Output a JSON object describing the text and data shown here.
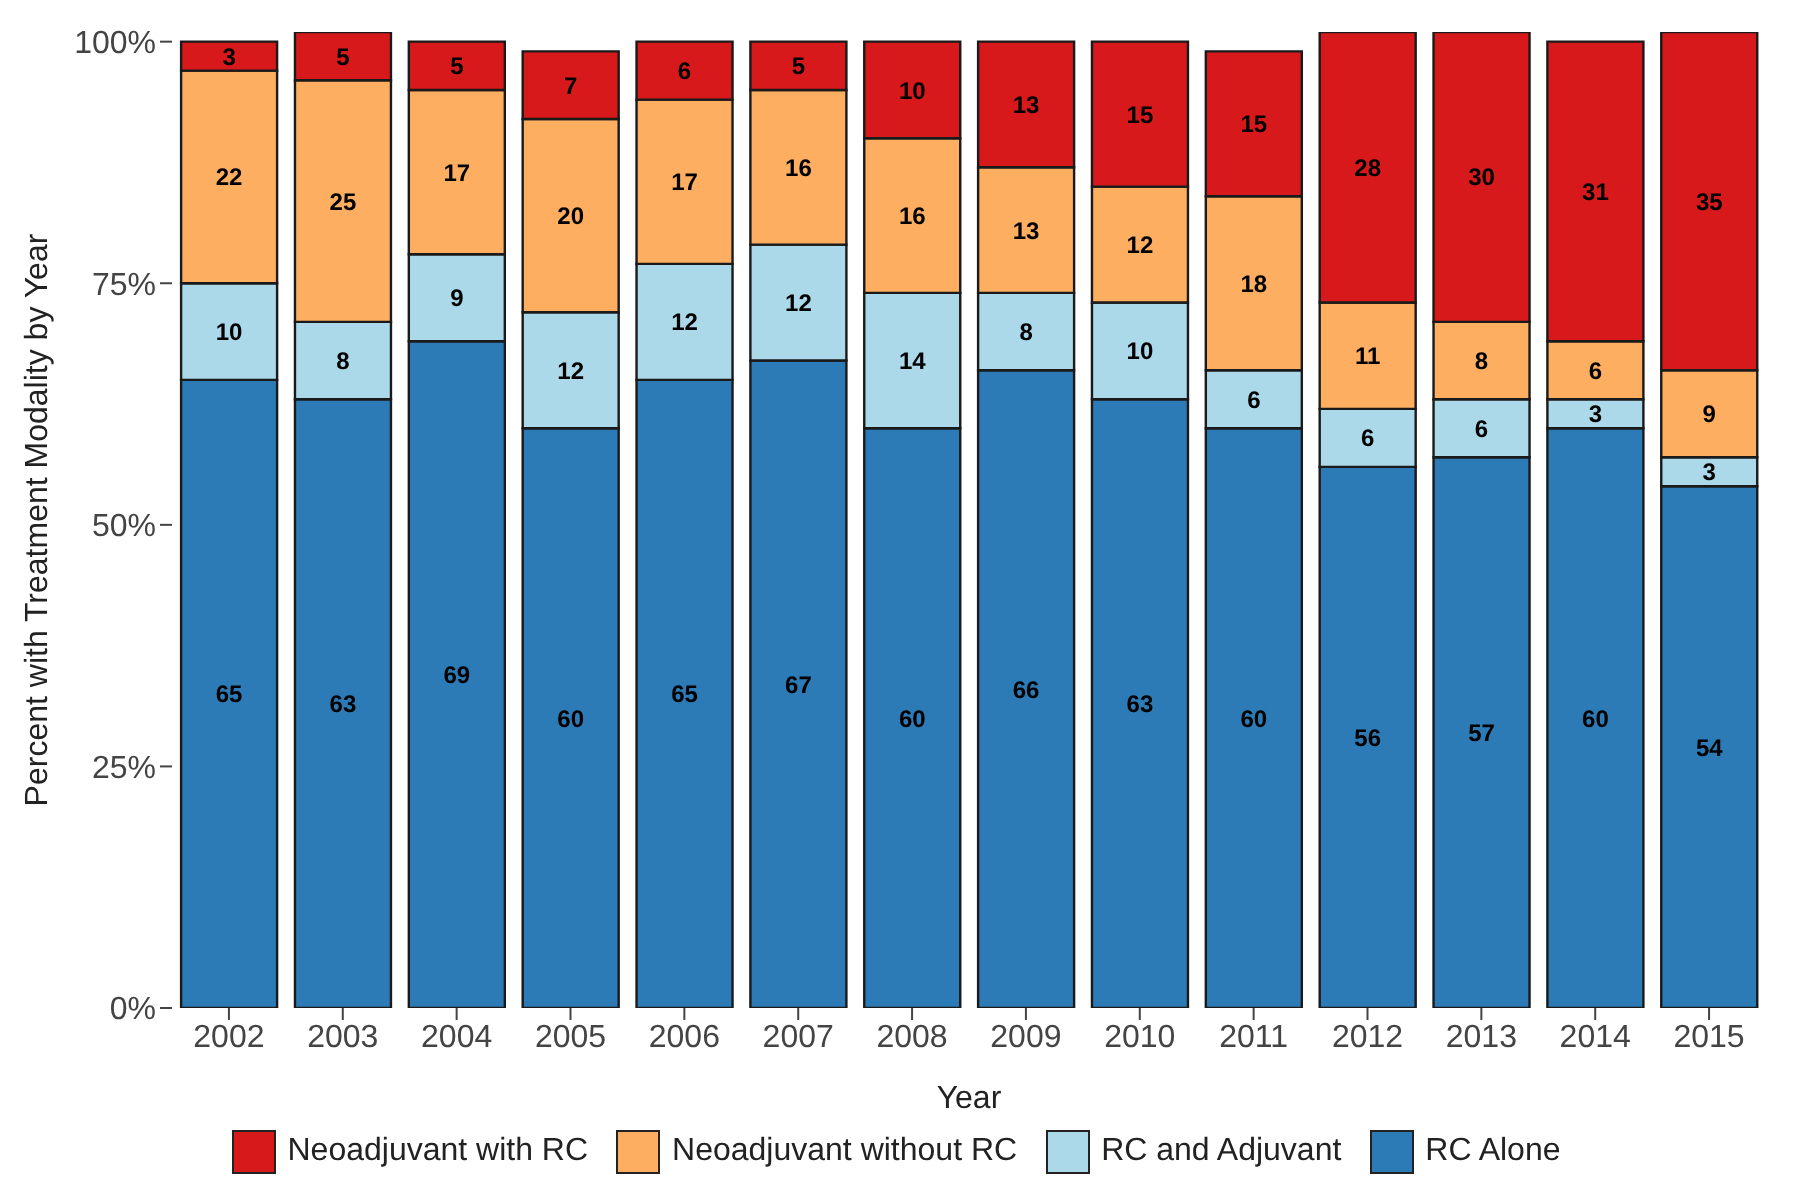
{
  "chart_data": {
    "type": "bar",
    "stacked": true,
    "data_labels": true,
    "xlabel": "Year",
    "ylabel": "Percent with Treatment Modality by Year",
    "categories": [
      "2002",
      "2003",
      "2004",
      "2005",
      "2006",
      "2007",
      "2008",
      "2009",
      "2010",
      "2011",
      "2012",
      "2013",
      "2014",
      "2015"
    ],
    "series": [
      {
        "name": "RC Alone",
        "color": "#2c7bb6",
        "values": [
          65,
          63,
          69,
          60,
          65,
          67,
          60,
          66,
          63,
          60,
          56,
          57,
          60,
          54
        ]
      },
      {
        "name": "RC and Adjuvant",
        "color": "#abd9e9",
        "values": [
          10,
          8,
          9,
          12,
          12,
          12,
          14,
          8,
          10,
          6,
          6,
          6,
          3,
          3
        ]
      },
      {
        "name": "Neoadjuvant without RC",
        "color": "#fdae61",
        "values": [
          22,
          25,
          17,
          20,
          17,
          16,
          16,
          13,
          12,
          18,
          11,
          8,
          6,
          9
        ]
      },
      {
        "name": "Neoadjuvant with RC",
        "color": "#d7191c",
        "values": [
          3,
          5,
          5,
          7,
          6,
          5,
          10,
          13,
          15,
          15,
          28,
          30,
          31,
          35
        ]
      }
    ],
    "ylim": [
      0,
      101
    ],
    "yticks": [
      {
        "value": 0,
        "label": "0%"
      },
      {
        "value": 25,
        "label": "25%"
      },
      {
        "value": 50,
        "label": "50%"
      },
      {
        "value": 75,
        "label": "75%"
      },
      {
        "value": 100,
        "label": "100%"
      }
    ],
    "grid": false,
    "legend": "bottom"
  }
}
